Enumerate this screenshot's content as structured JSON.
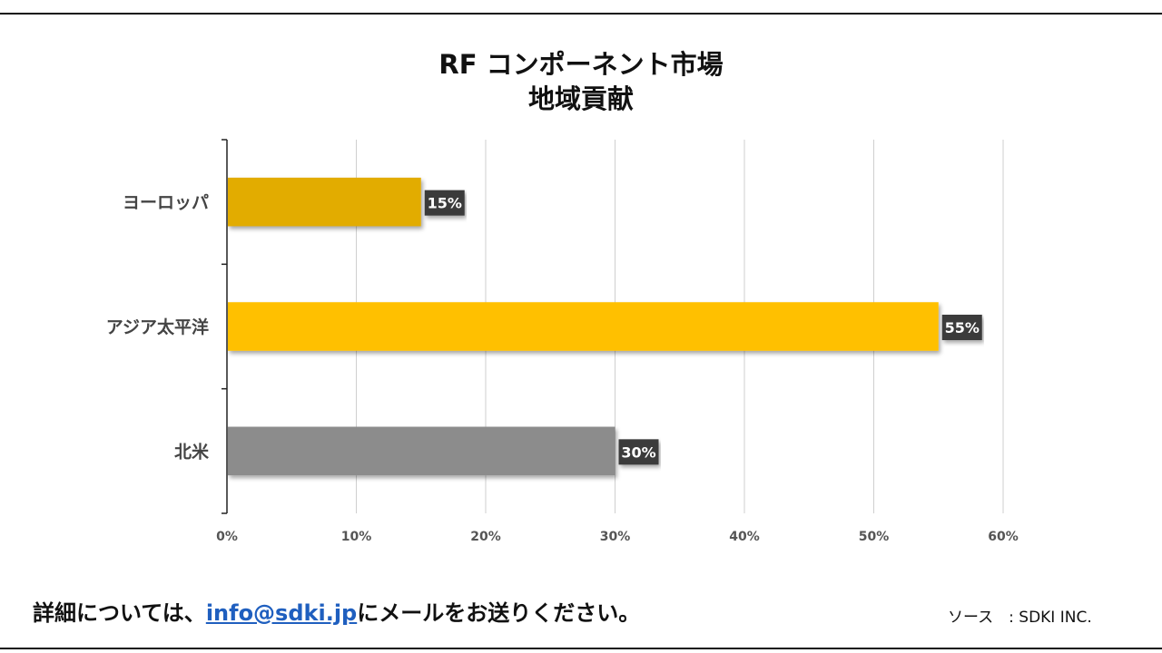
{
  "chart_data": {
    "type": "bar",
    "orientation": "horizontal",
    "title": "RF コンポーネント市場",
    "subtitle": "地域貢献",
    "categories": [
      "ヨーロッパ",
      "アジア太平洋",
      "北米"
    ],
    "values": [
      15,
      55,
      30
    ],
    "data_labels": [
      "15%",
      "55%",
      "30%"
    ],
    "colors": [
      "#E2AC00",
      "#FFC000",
      "#8C8C8C"
    ],
    "xlim": [
      0,
      60
    ],
    "x_ticks": [
      0,
      10,
      20,
      30,
      40,
      50,
      60
    ],
    "x_tick_labels": [
      "0%",
      "10%",
      "20%",
      "30%",
      "40%",
      "50%",
      "60%"
    ],
    "grid": "vertical",
    "legend": "none"
  },
  "footer": {
    "text_before": "詳細については、",
    "email": "info@sdki.jp",
    "text_after": "にメールをお送りください。",
    "source": "ソース　: SDKI INC."
  }
}
